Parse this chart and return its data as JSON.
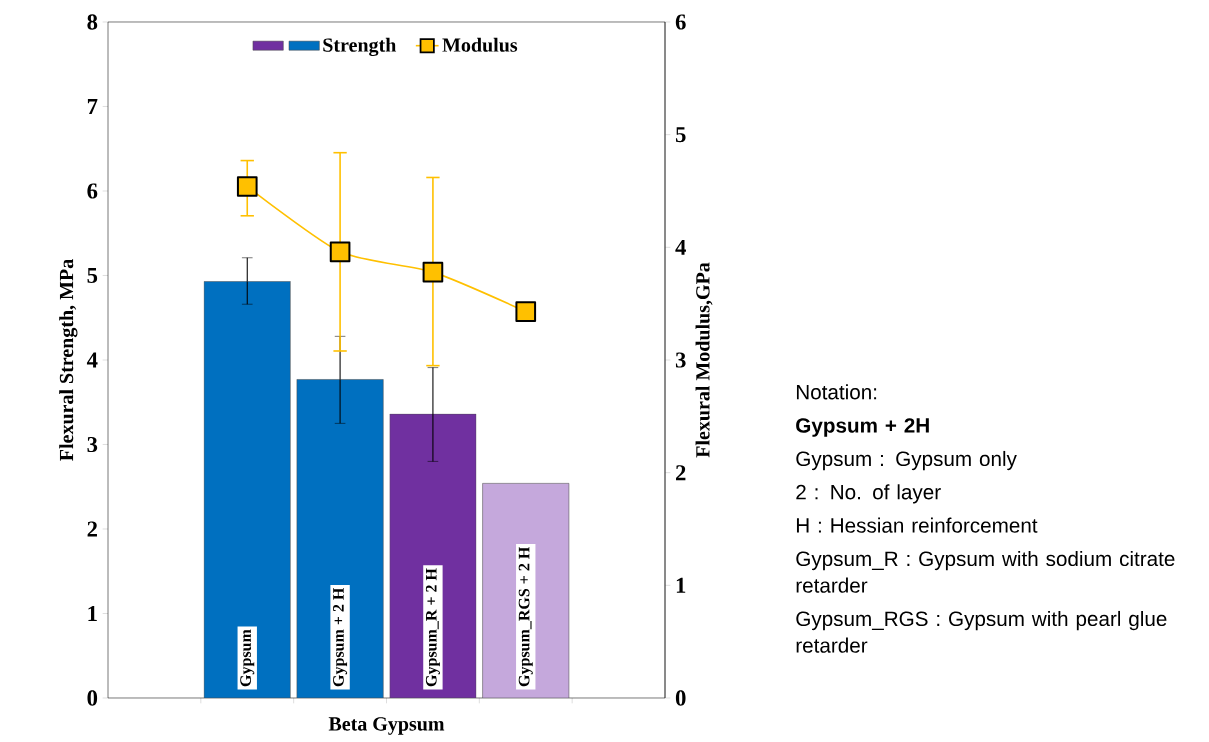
{
  "chart_data": {
    "type": "bar",
    "xlabel": "Beta Gypsum",
    "ylabel": "Flexural Strength, MPa",
    "y2label": "Flexural Modulus,GPa",
    "categories": [
      "Gypsum",
      "Gypsum + 2 H",
      "Gypsum_R + 2 H",
      "Gypsum_RGS + 2 H"
    ],
    "series": [
      {
        "name": "Strength",
        "colors": [
          "#0070c0",
          "#0070c0",
          "#7030a0",
          "#c5a8dc"
        ],
        "values": [
          4.93,
          3.77,
          3.36,
          2.54
        ],
        "errors": [
          [
            4.66,
            5.21
          ],
          [
            3.25,
            4.28
          ],
          [
            2.8,
            3.91
          ],
          null
        ]
      },
      {
        "name": "Modulus",
        "type": "line",
        "axis": "y2",
        "color": "#ffc000",
        "marker": "square",
        "values": [
          4.54,
          3.96,
          3.78,
          3.43
        ],
        "errors": [
          [
            4.28,
            4.77
          ],
          [
            3.08,
            4.84
          ],
          [
            2.95,
            4.62
          ],
          null
        ]
      }
    ],
    "ylim": [
      0,
      8
    ],
    "yticks": [
      0,
      1,
      2,
      3,
      4,
      5,
      6,
      7,
      8
    ],
    "y2lim": [
      0,
      6
    ],
    "y2ticks": [
      0,
      1,
      2,
      3,
      4,
      5,
      6
    ],
    "legend": "top",
    "annotations": [
      "Notation:",
      "**Gypsum + 2H**",
      "Gypsum : Gypsum only",
      "2 : No. of layer",
      "H : Hessian reinforcement",
      "Gypsum_R : Gypsum with sodium citrate retarder",
      "Gypsum_RGS : Gypsum with pearl glue retarder"
    ]
  }
}
